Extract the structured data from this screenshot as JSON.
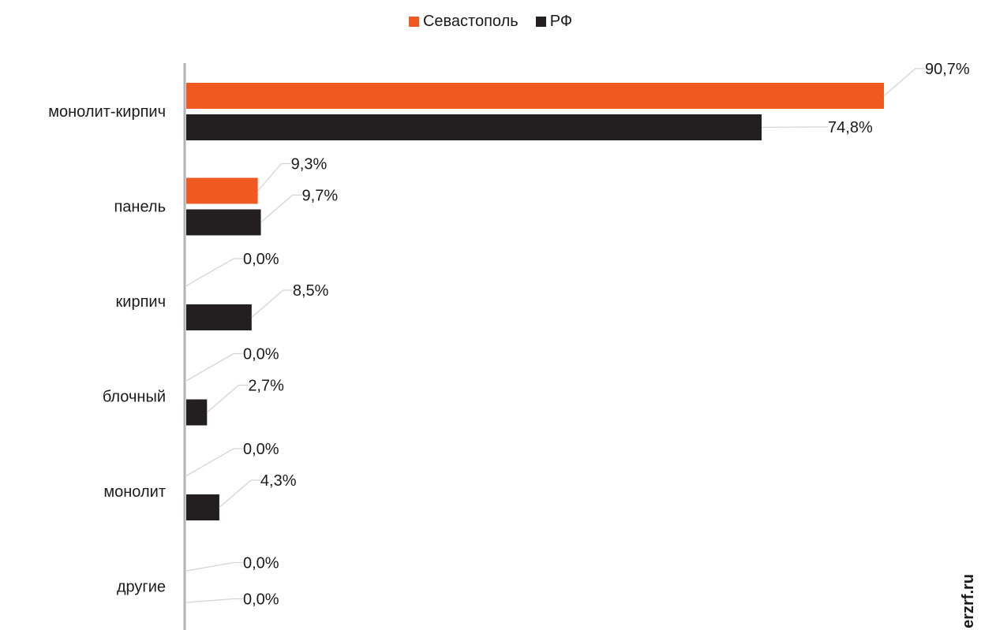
{
  "chart_data": {
    "type": "bar",
    "orientation": "horizontal",
    "categories": [
      "монолит-кирпич",
      "панель",
      "кирпич",
      "блочный",
      "монолит",
      "другие"
    ],
    "series": [
      {
        "name": "Севастополь",
        "color": "#f05a22",
        "values": [
          90.7,
          9.3,
          0.0,
          0.0,
          0.0,
          0.0
        ],
        "labels": [
          "90,7%",
          "9,3%",
          "0,0%",
          "0,0%",
          "0,0%",
          "0,0%"
        ]
      },
      {
        "name": "РФ",
        "color": "#231f20",
        "values": [
          74.8,
          9.7,
          8.5,
          2.7,
          4.3,
          0.0
        ],
        "labels": [
          "74,8%",
          "9,7%",
          "8,5%",
          "2,7%",
          "4,3%",
          "0,0%"
        ]
      }
    ],
    "xlim": [
      0,
      90.7
    ],
    "legend_position": "top-center",
    "grid": false
  },
  "watermark": "erzrf.ru"
}
